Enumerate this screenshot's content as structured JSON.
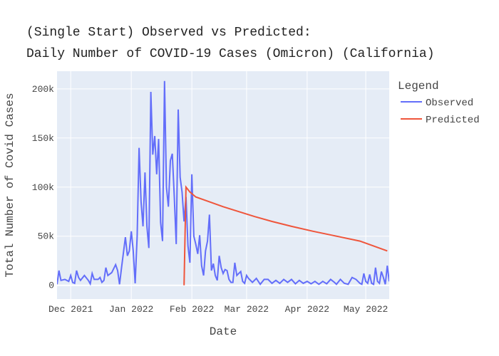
{
  "chart_data": {
    "type": "line",
    "title_line1": "(Single Start) Observed vs Predicted:",
    "title_line2": "Daily Number of COVID-19 Cases (Omicron) (California)",
    "xlabel": "Date",
    "ylabel": "Total Number of Covid Cases",
    "legend_title": "Legend",
    "legend_placement": "right",
    "grid": true,
    "colors": {
      "plot_bg": "#E5ECF6",
      "grid": "#FFFFFF",
      "observed": "#636EFA",
      "predicted": "#EF553B"
    },
    "x_range": [
      "2021-11-24",
      "2022-05-13"
    ],
    "ylim": [
      -14000,
      218000
    ],
    "x_ticks": [
      {
        "date": "2021-12-01",
        "label": "Dec 2021"
      },
      {
        "date": "2022-01-01",
        "label": "Jan 2022"
      },
      {
        "date": "2022-02-01",
        "label": "Feb 2022"
      },
      {
        "date": "2022-03-01",
        "label": "Mar 2022"
      },
      {
        "date": "2022-04-01",
        "label": "Apr 2022"
      },
      {
        "date": "2022-05-01",
        "label": "May 2022"
      }
    ],
    "y_ticks": [
      {
        "value": 0,
        "label": "0"
      },
      {
        "value": 50000,
        "label": "50k"
      },
      {
        "value": 100000,
        "label": "100k"
      },
      {
        "value": 150000,
        "label": "150k"
      },
      {
        "value": 200000,
        "label": "200k"
      }
    ],
    "series": [
      {
        "name": "Observed",
        "color": "#636EFA",
        "points": [
          [
            "2021-11-24",
            1000
          ],
          [
            "2021-11-25",
            15000
          ],
          [
            "2021-11-26",
            5000
          ],
          [
            "2021-11-28",
            6000
          ],
          [
            "2021-11-30",
            4000
          ],
          [
            "2021-12-01",
            10000
          ],
          [
            "2021-12-02",
            3000
          ],
          [
            "2021-12-03",
            2000
          ],
          [
            "2021-12-04",
            15000
          ],
          [
            "2021-12-05",
            8000
          ],
          [
            "2021-12-06",
            5000
          ],
          [
            "2021-12-08",
            10000
          ],
          [
            "2021-12-10",
            5000
          ],
          [
            "2021-12-11",
            1500
          ],
          [
            "2021-12-12",
            12000
          ],
          [
            "2021-12-13",
            6000
          ],
          [
            "2021-12-15",
            6000
          ],
          [
            "2021-12-16",
            8000
          ],
          [
            "2021-12-17",
            3000
          ],
          [
            "2021-12-18",
            5000
          ],
          [
            "2021-12-19",
            18000
          ],
          [
            "2021-12-20",
            10000
          ],
          [
            "2021-12-22",
            13000
          ],
          [
            "2021-12-24",
            21000
          ],
          [
            "2021-12-25",
            15000
          ],
          [
            "2021-12-26",
            1000
          ],
          [
            "2021-12-27",
            18000
          ],
          [
            "2021-12-29",
            49000
          ],
          [
            "2021-12-30",
            30000
          ],
          [
            "2021-12-31",
            35000
          ],
          [
            "2022-01-01",
            55000
          ],
          [
            "2022-01-02",
            35000
          ],
          [
            "2022-01-03",
            2000
          ],
          [
            "2022-01-04",
            50000
          ],
          [
            "2022-01-05",
            140000
          ],
          [
            "2022-01-06",
            85000
          ],
          [
            "2022-01-07",
            60000
          ],
          [
            "2022-01-08",
            115000
          ],
          [
            "2022-01-09",
            60000
          ],
          [
            "2022-01-10",
            38000
          ],
          [
            "2022-01-11",
            197000
          ],
          [
            "2022-01-12",
            133000
          ],
          [
            "2022-01-13",
            152000
          ],
          [
            "2022-01-14",
            113000
          ],
          [
            "2022-01-15",
            149000
          ],
          [
            "2022-01-16",
            64000
          ],
          [
            "2022-01-17",
            45000
          ],
          [
            "2022-01-18",
            208000
          ],
          [
            "2022-01-19",
            100000
          ],
          [
            "2022-01-20",
            80000
          ],
          [
            "2022-01-21",
            127000
          ],
          [
            "2022-01-22",
            134000
          ],
          [
            "2022-01-23",
            90000
          ],
          [
            "2022-01-24",
            42000
          ],
          [
            "2022-01-25",
            179000
          ],
          [
            "2022-01-26",
            110000
          ],
          [
            "2022-01-27",
            95000
          ],
          [
            "2022-01-28",
            65000
          ],
          [
            "2022-01-29",
            90000
          ],
          [
            "2022-01-30",
            40000
          ],
          [
            "2022-01-31",
            23000
          ],
          [
            "2022-02-01",
            113000
          ],
          [
            "2022-02-02",
            50000
          ],
          [
            "2022-02-03",
            42000
          ],
          [
            "2022-02-04",
            32000
          ],
          [
            "2022-02-05",
            51000
          ],
          [
            "2022-02-06",
            20000
          ],
          [
            "2022-02-07",
            10000
          ],
          [
            "2022-02-08",
            35000
          ],
          [
            "2022-02-09",
            45000
          ],
          [
            "2022-02-10",
            72000
          ],
          [
            "2022-02-11",
            15000
          ],
          [
            "2022-02-12",
            22000
          ],
          [
            "2022-02-13",
            10000
          ],
          [
            "2022-02-14",
            5000
          ],
          [
            "2022-02-15",
            30000
          ],
          [
            "2022-02-16",
            18000
          ],
          [
            "2022-02-17",
            12000
          ],
          [
            "2022-02-18",
            16000
          ],
          [
            "2022-02-19",
            15000
          ],
          [
            "2022-02-20",
            6000
          ],
          [
            "2022-02-21",
            3000
          ],
          [
            "2022-02-22",
            3000
          ],
          [
            "2022-02-23",
            23000
          ],
          [
            "2022-02-24",
            10000
          ],
          [
            "2022-02-25",
            12000
          ],
          [
            "2022-02-26",
            14000
          ],
          [
            "2022-02-27",
            4000
          ],
          [
            "2022-02-28",
            2000
          ],
          [
            "2022-03-01",
            10000
          ],
          [
            "2022-03-02",
            7000
          ],
          [
            "2022-03-04",
            3000
          ],
          [
            "2022-03-06",
            7000
          ],
          [
            "2022-03-08",
            1000
          ],
          [
            "2022-03-10",
            6000
          ],
          [
            "2022-03-12",
            6000
          ],
          [
            "2022-03-14",
            2000
          ],
          [
            "2022-03-16",
            5000
          ],
          [
            "2022-03-18",
            2000
          ],
          [
            "2022-03-20",
            6000
          ],
          [
            "2022-03-22",
            3000
          ],
          [
            "2022-03-24",
            6000
          ],
          [
            "2022-03-26",
            1500
          ],
          [
            "2022-03-28",
            5000
          ],
          [
            "2022-03-30",
            2000
          ],
          [
            "2022-04-01",
            4000
          ],
          [
            "2022-04-03",
            1500
          ],
          [
            "2022-04-05",
            4000
          ],
          [
            "2022-04-07",
            1000
          ],
          [
            "2022-04-09",
            4000
          ],
          [
            "2022-04-11",
            1500
          ],
          [
            "2022-04-13",
            6000
          ],
          [
            "2022-04-15",
            3000
          ],
          [
            "2022-04-16",
            1000
          ],
          [
            "2022-04-18",
            6000
          ],
          [
            "2022-04-20",
            2000
          ],
          [
            "2022-04-22",
            1000
          ],
          [
            "2022-04-24",
            8000
          ],
          [
            "2022-04-26",
            6000
          ],
          [
            "2022-04-28",
            2000
          ],
          [
            "2022-04-29",
            1000
          ],
          [
            "2022-04-30",
            12000
          ],
          [
            "2022-05-01",
            4000
          ],
          [
            "2022-05-02",
            2000
          ],
          [
            "2022-05-03",
            11000
          ],
          [
            "2022-05-04",
            2000
          ],
          [
            "2022-05-05",
            1000
          ],
          [
            "2022-05-06",
            18000
          ],
          [
            "2022-05-07",
            4000
          ],
          [
            "2022-05-08",
            2000
          ],
          [
            "2022-05-09",
            14000
          ],
          [
            "2022-05-10",
            8000
          ],
          [
            "2022-05-11",
            1000
          ],
          [
            "2022-05-12",
            20000
          ],
          [
            "2022-05-13",
            4000
          ]
        ]
      },
      {
        "name": "Predicted",
        "color": "#EF553B",
        "points": [
          [
            "2022-01-28",
            0
          ],
          [
            "2022-01-29",
            100000
          ],
          [
            "2022-01-31",
            95000
          ],
          [
            "2022-02-03",
            90000
          ],
          [
            "2022-02-10",
            85000
          ],
          [
            "2022-02-17",
            80000
          ],
          [
            "2022-02-25",
            75000
          ],
          [
            "2022-03-05",
            70000
          ],
          [
            "2022-03-14",
            65000
          ],
          [
            "2022-03-24",
            60000
          ],
          [
            "2022-04-04",
            55000
          ],
          [
            "2022-04-16",
            50000
          ],
          [
            "2022-04-28",
            45000
          ],
          [
            "2022-05-12",
            35000
          ]
        ]
      }
    ]
  }
}
